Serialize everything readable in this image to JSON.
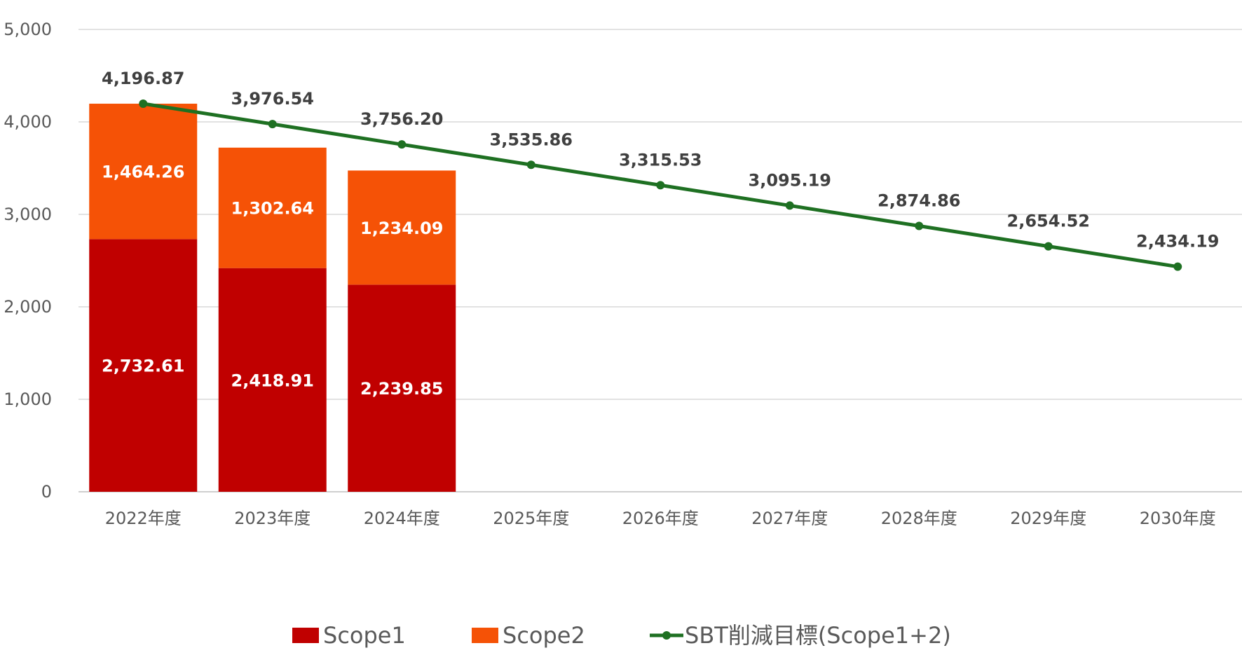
{
  "chart_data": {
    "type": "bar",
    "categories": [
      "2022年度",
      "2023年度",
      "2024年度",
      "2025年度",
      "2026年度",
      "2027年度",
      "2028年度",
      "2029年度",
      "2030年度"
    ],
    "ylim": [
      0,
      5000
    ],
    "yticks": [
      0,
      1000,
      2000,
      3000,
      4000,
      5000
    ],
    "ytick_labels": [
      "0",
      "1,000",
      "2,000",
      "3,000",
      "4,000",
      "5,000"
    ],
    "grid": true,
    "legend_position": "bottom",
    "series": [
      {
        "name": "Scope1",
        "kind": "bar",
        "stack": "emissions",
        "color": "#C00000",
        "values": [
          2732.61,
          2418.91,
          2239.85,
          null,
          null,
          null,
          null,
          null,
          null
        ],
        "labels": [
          "2,732.61",
          "2,418.91",
          "2,239.85",
          "",
          "",
          "",
          "",
          "",
          ""
        ]
      },
      {
        "name": "Scope2",
        "kind": "bar",
        "stack": "emissions",
        "color": "#F55206",
        "values": [
          1464.26,
          1302.64,
          1234.09,
          null,
          null,
          null,
          null,
          null,
          null
        ],
        "labels": [
          "1,464.26",
          "1,302.64",
          "1,234.09",
          "",
          "",
          "",
          "",
          "",
          ""
        ]
      },
      {
        "name": "SBT削減目標(Scope1+2)",
        "kind": "line",
        "color": "#1E7022",
        "values": [
          4196.87,
          3976.54,
          3756.2,
          3535.86,
          3315.53,
          3095.19,
          2874.86,
          2654.52,
          2434.19
        ],
        "labels": [
          "4,196.87",
          "3,976.54",
          "3,756.20",
          "3,535.86",
          "3,315.53",
          "3,095.19",
          "2,874.86",
          "2,654.52",
          "2,434.19"
        ]
      }
    ]
  }
}
